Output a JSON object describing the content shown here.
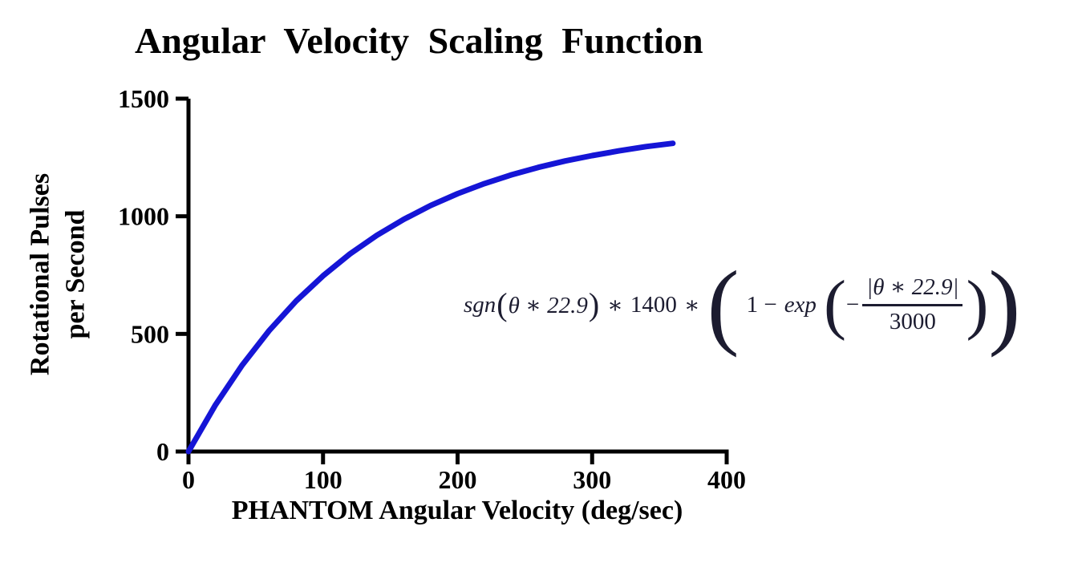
{
  "page": {
    "background": "#ffffff",
    "text_color": "#000000"
  },
  "chart_data": {
    "type": "line",
    "title": "Angular Velocity Scaling Function",
    "xlabel": "PHANTOM Angular Velocity (deg/sec)",
    "ylabel": "Rotational Pulses per Second",
    "ylabel_line1": "Rotational Pulses",
    "ylabel_line2": "per Second",
    "xlim": [
      0,
      400
    ],
    "ylim": [
      0,
      1500
    ],
    "x_ticks": [
      0,
      100,
      200,
      300,
      400
    ],
    "y_ticks": [
      0,
      500,
      1000,
      1500
    ],
    "grid": false,
    "legend_position": "none",
    "axis_color": "#000000",
    "series": [
      {
        "name": "angular-velocity-scaling-curve",
        "color": "#1515d6",
        "formula_text": "sgn(θ ∗ 22.9) ∗ 1400 ∗ (1 − exp(−|θ ∗ 22.9| / 3000))",
        "x": [
          0,
          20,
          40,
          60,
          80,
          100,
          120,
          140,
          160,
          180,
          200,
          220,
          240,
          260,
          280,
          300,
          320,
          340,
          360
        ],
        "y": [
          0,
          198,
          368,
          514,
          640,
          747,
          840,
          919,
          987,
          1046,
          1096,
          1139,
          1176,
          1208,
          1235,
          1258,
          1278,
          1296,
          1310
        ]
      }
    ],
    "annotation": {
      "sgn": "sgn",
      "open_paren": "(",
      "theta_arg": "θ ∗ 22.9",
      "close_paren": ")",
      "times": "∗",
      "amplitude": "1400",
      "one_minus": "1 −",
      "exp": "exp",
      "minus": "−",
      "numerator": "|θ ∗ 22.9|",
      "denominator": "3000"
    }
  }
}
